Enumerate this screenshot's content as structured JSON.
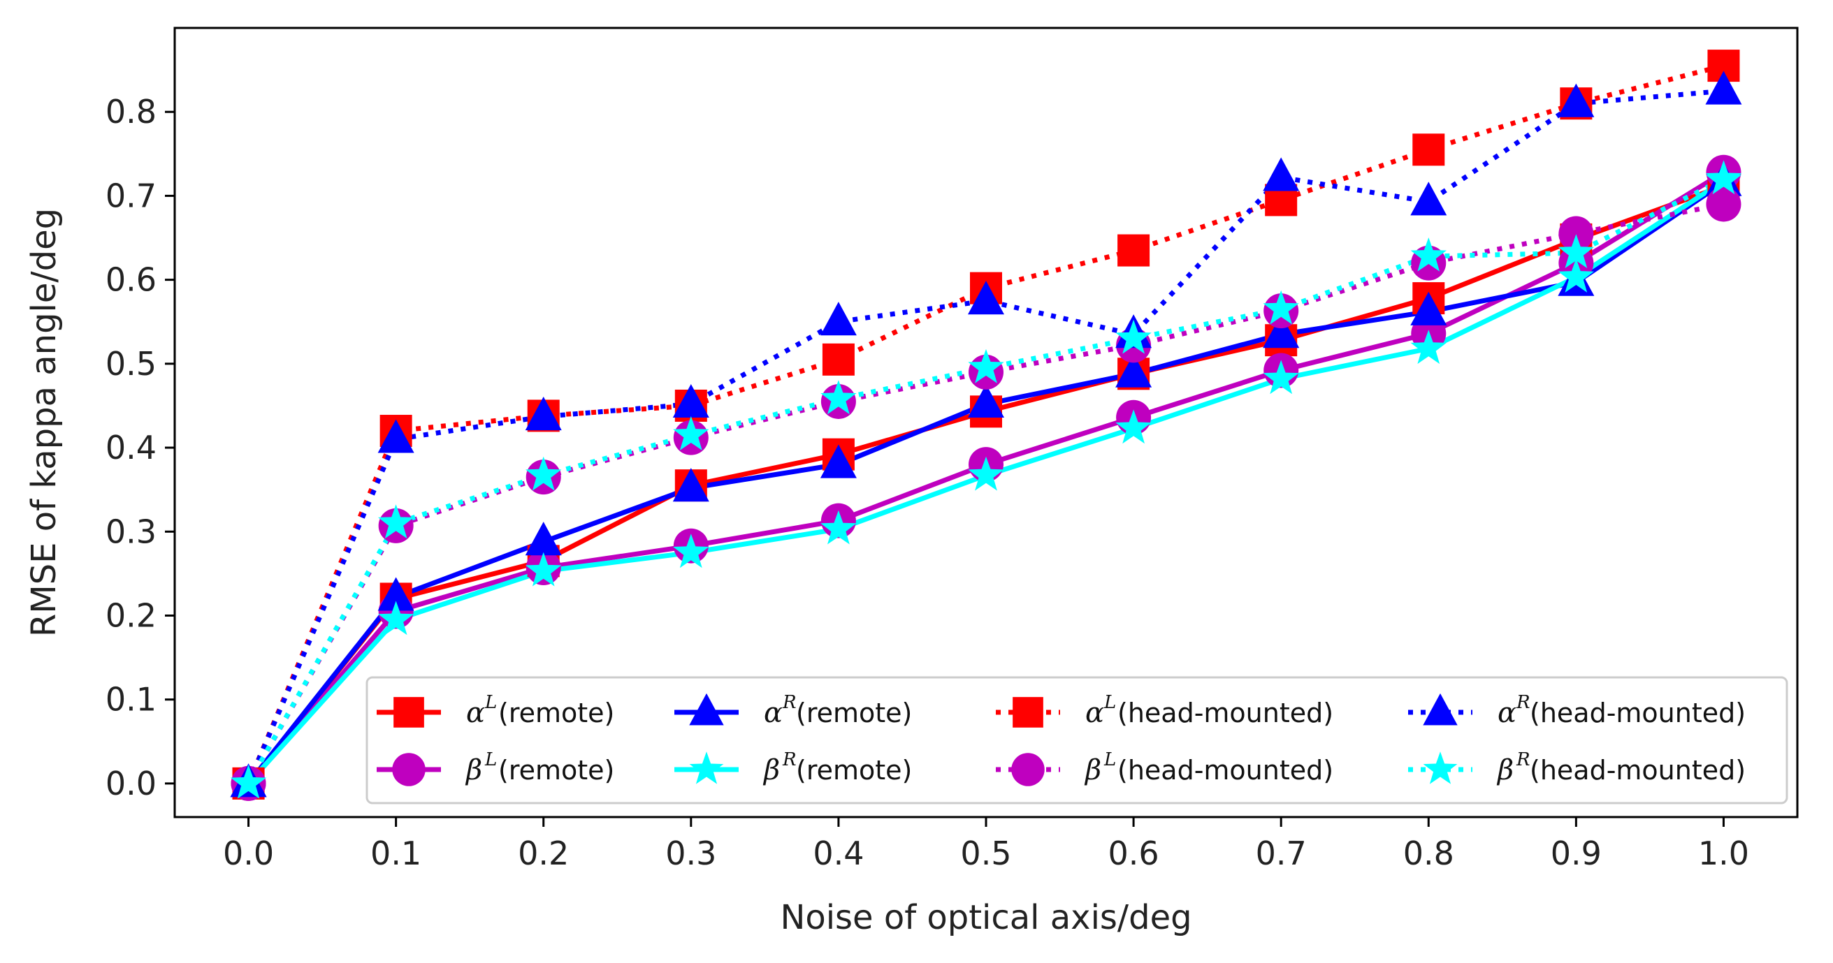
{
  "chart_data": {
    "type": "line",
    "xlabel": "Noise of optical axis/deg",
    "ylabel": "RMSE of kappa angle/deg",
    "x": [
      0.0,
      0.1,
      0.2,
      0.3,
      0.4,
      0.5,
      0.6,
      0.7,
      0.8,
      0.9,
      1.0
    ],
    "x_tick_labels": [
      "0.0",
      "0.1",
      "0.2",
      "0.3",
      "0.4",
      "0.5",
      "0.6",
      "0.7",
      "0.8",
      "0.9",
      "1.0"
    ],
    "y_ticks": [
      0.0,
      0.1,
      0.2,
      0.3,
      0.4,
      0.5,
      0.6,
      0.7,
      0.8
    ],
    "y_tick_labels": [
      "0.0",
      "0.1",
      "0.2",
      "0.3",
      "0.4",
      "0.5",
      "0.6",
      "0.7",
      "0.8"
    ],
    "xlim": [
      -0.05,
      1.05
    ],
    "ylim": [
      -0.04,
      0.9
    ],
    "legend_position": "lower-right",
    "series": [
      {
        "id": "alphaL-remote",
        "symbol": "α",
        "sup": "L",
        "suffix": "(remote)",
        "color": "#ff0000",
        "marker": "square",
        "linestyle": "solid",
        "values": [
          0.0,
          0.22,
          0.265,
          0.355,
          0.392,
          0.443,
          0.488,
          0.528,
          0.578,
          0.648,
          0.712
        ]
      },
      {
        "id": "betaL-remote",
        "symbol": "β",
        "sup": "L",
        "suffix": "(remote)",
        "color": "#bf00bf",
        "marker": "circle",
        "linestyle": "solid",
        "values": [
          0.0,
          0.205,
          0.257,
          0.283,
          0.313,
          0.38,
          0.436,
          0.492,
          0.536,
          0.62,
          0.728
        ]
      },
      {
        "id": "alphaR-remote",
        "symbol": "α",
        "sup": "R",
        "suffix": "(remote)",
        "color": "#0000ff",
        "marker": "triangle",
        "linestyle": "solid",
        "values": [
          0.0,
          0.222,
          0.288,
          0.352,
          0.38,
          0.452,
          0.488,
          0.535,
          0.562,
          0.597,
          0.716
        ]
      },
      {
        "id": "betaR-remote",
        "symbol": "β",
        "sup": "R",
        "suffix": "(remote)",
        "color": "#00ffff",
        "marker": "star",
        "linestyle": "solid",
        "values": [
          0.0,
          0.195,
          0.253,
          0.275,
          0.303,
          0.367,
          0.423,
          0.482,
          0.518,
          0.603,
          0.718
        ]
      },
      {
        "id": "alphaL-head",
        "symbol": "α",
        "sup": "L",
        "suffix": "(head-mounted)",
        "color": "#ff0000",
        "marker": "square",
        "linestyle": "dotted",
        "values": [
          0.0,
          0.42,
          0.438,
          0.45,
          0.505,
          0.59,
          0.635,
          0.695,
          0.755,
          0.81,
          0.855
        ]
      },
      {
        "id": "betaL-head",
        "symbol": "β",
        "sup": "L",
        "suffix": "(head-mounted)",
        "color": "#bf00bf",
        "marker": "circle",
        "linestyle": "dotted",
        "values": [
          0.0,
          0.307,
          0.365,
          0.412,
          0.455,
          0.49,
          0.522,
          0.563,
          0.62,
          0.655,
          0.69
        ]
      },
      {
        "id": "alphaR-head",
        "symbol": "α",
        "sup": "R",
        "suffix": "(head-mounted)",
        "color": "#0000ff",
        "marker": "triangle",
        "linestyle": "dotted",
        "values": [
          0.0,
          0.41,
          0.437,
          0.452,
          0.55,
          0.575,
          0.535,
          0.722,
          0.693,
          0.81,
          0.825
        ]
      },
      {
        "id": "betaR-head",
        "symbol": "β",
        "sup": "R",
        "suffix": "(head-mounted)",
        "color": "#00ffff",
        "marker": "star",
        "linestyle": "dotted",
        "values": [
          0.0,
          0.31,
          0.367,
          0.415,
          0.458,
          0.495,
          0.53,
          0.565,
          0.628,
          0.632,
          0.72
        ]
      }
    ],
    "legend_order": [
      "alphaL-remote",
      "alphaR-remote",
      "alphaL-head",
      "alphaR-head",
      "betaL-remote",
      "betaR-remote",
      "betaL-head",
      "betaR-head"
    ]
  }
}
